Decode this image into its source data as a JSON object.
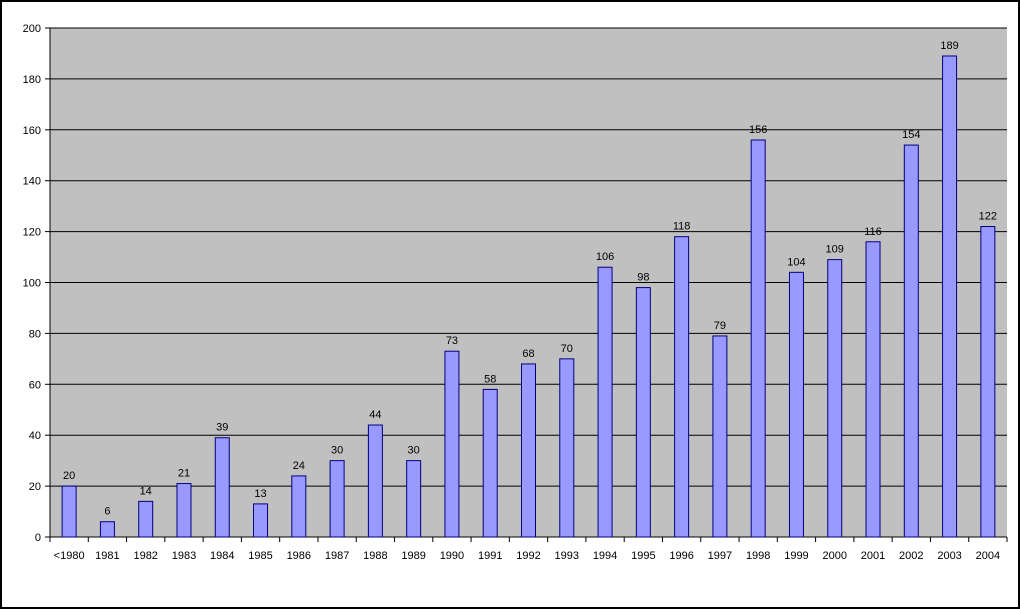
{
  "colors": {
    "plot_background": "#c0c0c0",
    "bar_fill": "#9999ff",
    "bar_stroke": "#000080",
    "gridline": "#000000",
    "frame": "#000000"
  },
  "chart_data": {
    "type": "bar",
    "title": "",
    "xlabel": "",
    "ylabel": "",
    "ylim": [
      0,
      200
    ],
    "yticks": [
      0,
      20,
      40,
      60,
      80,
      100,
      120,
      140,
      160,
      180,
      200
    ],
    "grid": true,
    "legend": "none",
    "data_labels": true,
    "categories": [
      "<1980",
      "1981",
      "1982",
      "1983",
      "1984",
      "1985",
      "1986",
      "1987",
      "1988",
      "1989",
      "1990",
      "1991",
      "1992",
      "1993",
      "1994",
      "1995",
      "1996",
      "1997",
      "1998",
      "1999",
      "2000",
      "2001",
      "2002",
      "2003",
      "2004"
    ],
    "values": [
      20,
      6,
      14,
      21,
      39,
      13,
      24,
      30,
      44,
      30,
      73,
      58,
      68,
      70,
      106,
      98,
      118,
      79,
      156,
      104,
      109,
      116,
      154,
      189,
      122
    ]
  }
}
